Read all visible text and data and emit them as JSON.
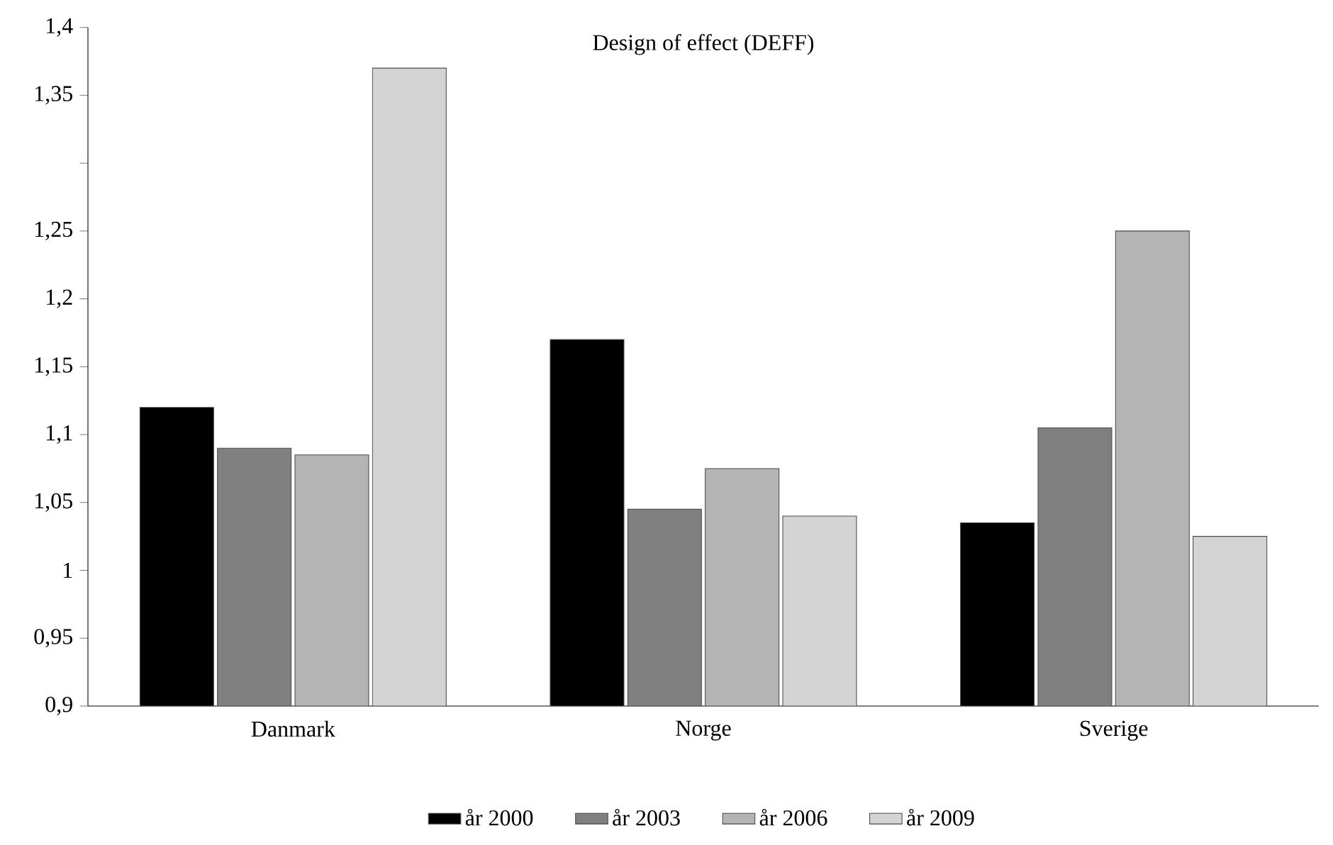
{
  "chart_data": {
    "type": "bar",
    "title": "Design of effect (DEFF)",
    "categories": [
      "Danmark",
      "Norge",
      "Sverige"
    ],
    "series": [
      {
        "name": "år 2000",
        "color": "#000000",
        "values": [
          1.12,
          1.17,
          1.035
        ]
      },
      {
        "name": "år 2003",
        "color": "#808080",
        "values": [
          1.09,
          1.045,
          1.105
        ]
      },
      {
        "name": "år 2006",
        "color": "#b4b4b4",
        "values": [
          1.085,
          1.075,
          1.25
        ]
      },
      {
        "name": "år 2009",
        "color": "#d4d4d4",
        "values": [
          1.37,
          1.04,
          1.025
        ]
      }
    ],
    "ylim": [
      0.9,
      1.4
    ],
    "yticks": [
      {
        "value": 0.9,
        "label": "0,9"
      },
      {
        "value": 0.95,
        "label": "0,95"
      },
      {
        "value": 1.0,
        "label": "1"
      },
      {
        "value": 1.05,
        "label": "1,05"
      },
      {
        "value": 1.1,
        "label": "1,1"
      },
      {
        "value": 1.15,
        "label": "1,15"
      },
      {
        "value": 1.2,
        "label": "1,2"
      },
      {
        "value": 1.25,
        "label": "1,25"
      },
      {
        "value": 1.3,
        "label": null
      },
      {
        "value": 1.35,
        "label": "1,35"
      },
      {
        "value": 1.4,
        "label": "1,4"
      }
    ],
    "grid": false,
    "legend": "bottom"
  }
}
